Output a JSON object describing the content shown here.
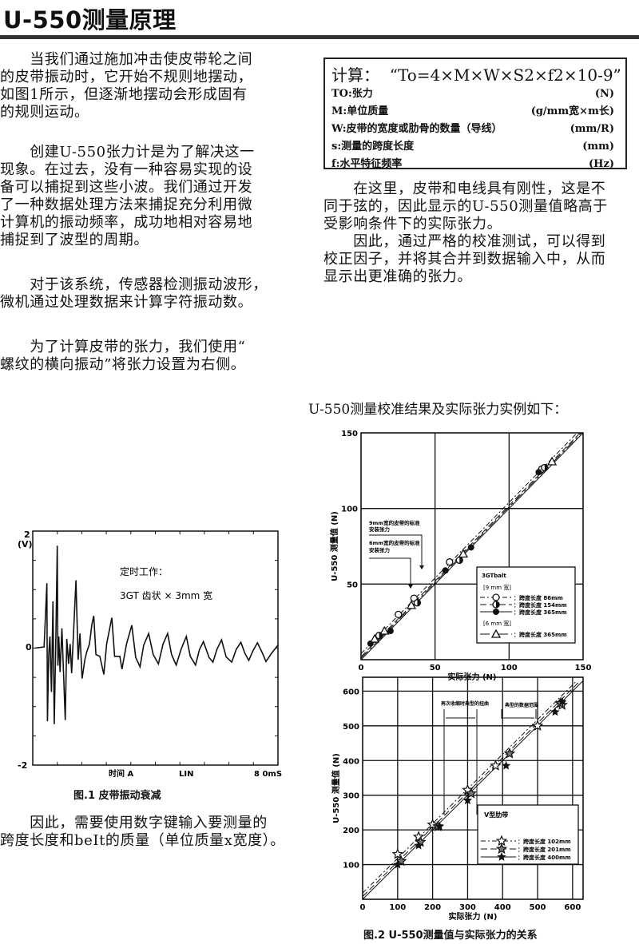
{
  "title": "U-550测量原理",
  "left_paragraphs": [
    [
      "　　当我们通过施加冲击使皮带轮之间",
      "的皮带振动时，它开始不规则地摆动，",
      "如图1所示，但逐渐地摆动会形成固有",
      "的规则运动。"
    ],
    [
      "　　创建U-550张力计是为了解决这一",
      "现象。在过去，没有一种容易实现的设",
      "备可以捕捉到这些小波。我们通过开发",
      "了一种数据处理方法来捕捉充分利用微",
      "计算机的振动频率，成功地相对容易地",
      "捕捉到了波型的周期。"
    ],
    [
      "　　对于该系统，传感器检测振动波形，",
      "微机通过处理数据来计算字符振动数。"
    ],
    [
      "　　为了计算皮带的张力，我们使用“",
      "螺纹的横向振动”将张力设置为右侧。"
    ]
  ],
  "formula_box": {
    "formula": "计算：  “To=4×M×W×S2×f2×10-9”",
    "rows": [
      {
        "label": "TO:张力",
        "unit": "(N)"
      },
      {
        "label": "M:单位质量",
        "unit": "(g/mm宽×m长)"
      },
      {
        "label": "W:皮带的宽度或肋骨的数量（导线）",
        "unit": "(mm/R)"
      },
      {
        "label": "s:测量的跨度长度",
        "unit": "(mm)"
      },
      {
        "label": "f:水平特征频率",
        "unit": "(Hz)"
      }
    ]
  },
  "right_paragraphs": [
    [
      "　　在这里，皮带和电线具有刚性，这是不",
      "同于弦的，因此显示的U-550测量值略高于",
      "受影响条件下的实际张力。"
    ],
    [
      "　　因此，通过严格的校准测试，可以得到",
      "校正因子，并将其合并到数据输入中，从而",
      "显示出更准确的张力。"
    ]
  ],
  "calibration_heading": "U-550测量校准结果及实际张力实例如下：",
  "bottom_paragraph": [
    "　　因此，需要使用数字键输入要测量的",
    "跨度长度和beIt的质量（单位质量x宽度）。"
  ],
  "fig1_caption": "图.1 皮带振动衰减",
  "fig2_caption": "图.2 U-550测量值与实际张力的关系",
  "chart_data": [
    {
      "type": "line",
      "ylabel": "(V)",
      "ylim": [
        -2,
        2
      ],
      "xlim": [
        0,
        80
      ],
      "y_ticks": [
        "2",
        "0",
        "-2"
      ],
      "x_labels": [
        "时间 A",
        "LIN",
        "8 0mS"
      ],
      "annotation": [
        "定时工作：",
        "3GT  齿状 × 3mm 宽"
      ],
      "grid": false,
      "series": [
        {
          "x": [
            0.7,
            3.7,
            4.6,
            4.8,
            5.2,
            5.6,
            6.1,
            6.6,
            7.0,
            7.5,
            8.0,
            8.2,
            8.5,
            8.9,
            9.5,
            10.6,
            11.1,
            11.7,
            12.2,
            12.7,
            14.1,
            14.8,
            15.4,
            16.1,
            17.0,
            17.6,
            18.5,
            19.3,
            19.9,
            20.6,
            21.9,
            23.2,
            24.1,
            25.8,
            26.7,
            28.4,
            29.1,
            30.6,
            32.3,
            33.6,
            35.0,
            36.2,
            37.8,
            39.3,
            41.0,
            42.5,
            44.0,
            45.3,
            46.8,
            48.4,
            50.1,
            51.4,
            53.1,
            54.4,
            55.7,
            57.5,
            58.8,
            60.1,
            61.6,
            63.1,
            64.9,
            66.4,
            67.9,
            69.2,
            70.5,
            71.8,
            73.3,
            74.8,
            76.1,
            77.9,
            80
          ],
          "y": [
            0,
            0.02,
            1.11,
            -1.25,
            -0.11,
            0.2,
            -0.75,
            0.8,
            -1.3,
            0.07,
            1.75,
            -0.3,
            0.2,
            -0.41,
            0.34,
            -1.23,
            0.16,
            -0.27,
            0.07,
            -0.43,
            1.16,
            -0.2,
            0.25,
            -0.52,
            -0.2,
            -0.07,
            0.07,
            0.41,
            0.55,
            -0.11,
            -0.14,
            -0.45,
            0.07,
            0.52,
            -0.14,
            -0.14,
            -0.36,
            0.07,
            0.39,
            -0.16,
            -0.32,
            0.05,
            0.25,
            -0.11,
            -0.27,
            0.07,
            0.25,
            -0.11,
            -0.29,
            -0.02,
            0.2,
            -0.14,
            -0.29,
            -0.02,
            0.11,
            -0.16,
            -0.24,
            -0.02,
            0.14,
            -0.15,
            -0.24,
            -0.02,
            0.1,
            -0.09,
            -0.21,
            -0.05,
            0.09,
            -0.07,
            -0.23,
            -0.09,
            0.05
          ]
        }
      ]
    },
    {
      "type": "scatter",
      "xlabel": "实际张力 (N)",
      "ylabel": "U-550 测量值 (N)",
      "xlim": [
        0,
        150
      ],
      "ylim": [
        0,
        150
      ],
      "x_ticks": [
        0,
        50,
        100,
        150
      ],
      "y_ticks": [
        50,
        100,
        150
      ],
      "grid": true,
      "legend_placement": "bottom-right",
      "legend_title": "3GTbalt",
      "legend_groups": [
        "[9 mm 宽]",
        "[6 mm 宽]"
      ],
      "annotations": [
        "9mm宽的皮带的标准",
        "安装张力",
        "6mm宽的皮带的标准",
        "安装张力"
      ],
      "series": [
        {
          "name": "：跨度长度 86mm",
          "marker": "open-circle",
          "line": "dash-dot",
          "x": [
            25.2,
            35.8,
            59.8,
            122
          ],
          "y": [
            29.9,
            40.6,
            64.6,
            126
          ]
        },
        {
          "name": "：跨度长度 154mm",
          "marker": "half-circle",
          "line": "dash",
          "x": [
            12.2,
            38,
            66.5,
            124
          ],
          "y": [
            16,
            37.6,
            65.8,
            127
          ]
        },
        {
          "name": "：跨度长度 365mm",
          "marker": "filled-circle",
          "line": "solid",
          "x": [
            6.4,
            19.9,
            57,
            74.3,
            120
          ],
          "y": [
            10.6,
            19,
            59,
            74.3,
            124
          ]
        },
        {
          "name": "：跨度长度 365mm",
          "marker": "triangle",
          "line": "long-dash-dot",
          "x": [
            9.2,
            15.8,
            34,
            69,
            129
          ],
          "y": [
            13.7,
            19,
            36,
            70,
            131
          ]
        }
      ]
    },
    {
      "type": "scatter",
      "xlabel": "实际张力 (N)",
      "ylabel": "U-550 测量值 (N)",
      "xlim": [
        0,
        630
      ],
      "ylim": [
        0,
        640
      ],
      "x_ticks": [
        0,
        100,
        200,
        300,
        400,
        500,
        600
      ],
      "y_ticks": [
        100,
        200,
        300,
        400,
        500,
        600
      ],
      "grid": true,
      "legend_placement": "bottom-right",
      "legend_title": "V型肋带",
      "annotations": [
        "再次收缩时典型的扭曲",
        "典型的数据范围"
      ],
      "series": [
        {
          "name": "：跨度长度 102mm",
          "marker": "open-star",
          "line": "dash-dot",
          "x": [
            100,
            160,
            200,
            300,
            380,
            500,
            570
          ],
          "y": [
            130,
            180,
            215,
            315,
            385,
            500,
            560
          ]
        },
        {
          "name": "：跨度长度 201mm",
          "marker": "half-star",
          "line": "dash",
          "x": [
            110,
            165,
            215,
            310,
            420,
            565
          ],
          "y": [
            110,
            165,
            210,
            305,
            420,
            565
          ]
        },
        {
          "name": "：跨度长度 400mm",
          "marker": "filled-star",
          "line": "solid",
          "x": [
            100,
            160,
            220,
            300,
            410,
            550,
            570
          ],
          "y": [
            100,
            155,
            210,
            285,
            385,
            540,
            570
          ]
        }
      ]
    }
  ]
}
